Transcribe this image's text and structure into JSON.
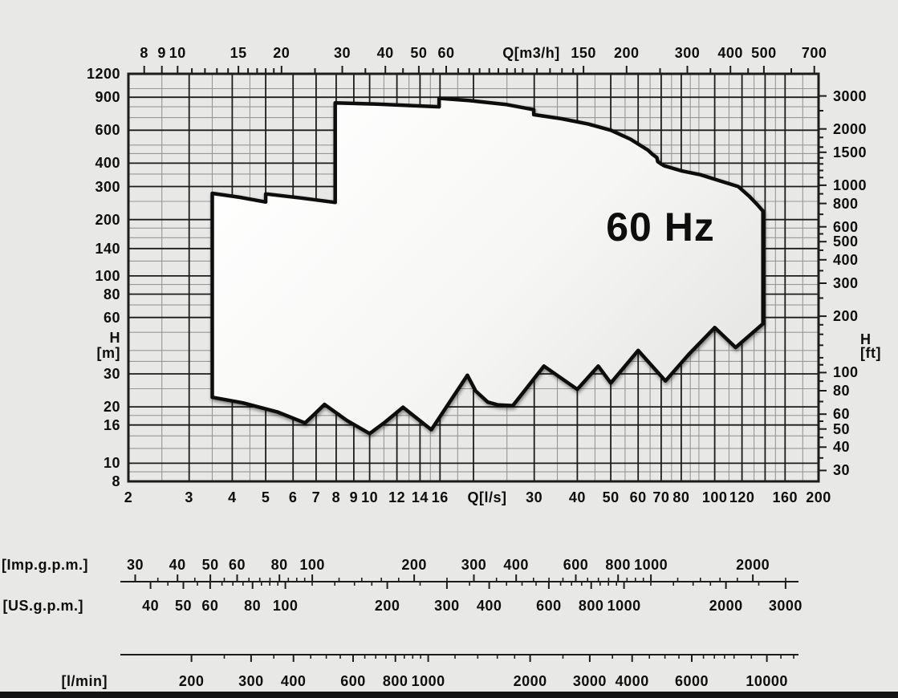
{
  "colors": {
    "background": "#e8e8e6",
    "grid_minor": "#979797",
    "grid_major": "#1c1c1c",
    "envelope_stroke": "#0f0f0f",
    "envelope_fill_light": "#ffffff",
    "envelope_fill_dark": "#e5e5e3",
    "text": "#0e0e0e"
  },
  "chart_data": {
    "type": "area",
    "description": "Pump operating range envelope, head H versus flow Q, log-log scales",
    "frequency_label": "60 Hz",
    "x_axis_bottom": {
      "unit": "Q[l/s]",
      "scale": "log",
      "min": 2,
      "max": 200,
      "labels": [
        2,
        3,
        4,
        5,
        6,
        7,
        8,
        9,
        10,
        12,
        14,
        16,
        30,
        40,
        50,
        60,
        70,
        80,
        100,
        120,
        160,
        200
      ],
      "major_gridlines": [
        3,
        4,
        5,
        6,
        7,
        8,
        9,
        10,
        12,
        14,
        16,
        20,
        30,
        40,
        50,
        60,
        70,
        80,
        100,
        120,
        140,
        160
      ],
      "minor_gridlines": [
        2.5,
        3.5,
        4.5,
        11,
        13,
        15,
        18,
        25,
        35,
        45,
        55,
        65,
        75,
        85,
        90,
        110,
        130,
        150,
        180
      ]
    },
    "x_axis_top": {
      "unit": "Q[m3/h]",
      "scale": "log",
      "min": 7.2,
      "max": 720,
      "labels": [
        8,
        9,
        10,
        15,
        20,
        30,
        40,
        50,
        60,
        150,
        200,
        300,
        400,
        500,
        700
      ],
      "ticks": [
        8,
        9,
        10,
        11,
        12,
        13,
        14,
        15,
        16,
        17,
        18,
        19,
        20,
        25,
        30,
        35,
        40,
        45,
        50,
        55,
        60,
        65,
        70,
        75,
        80,
        85,
        90,
        95,
        100,
        110,
        120,
        130,
        140,
        150,
        200,
        250,
        300,
        350,
        400,
        450,
        500,
        600,
        700
      ]
    },
    "y_axis_left": {
      "unit_lines": [
        "H",
        "[m]"
      ],
      "scale": "log",
      "min": 8,
      "max": 1200,
      "labels": [
        1200,
        900,
        600,
        400,
        300,
        200,
        140,
        100,
        80,
        60,
        30,
        20,
        16,
        10,
        8
      ],
      "major_gridlines": [
        10,
        16,
        20,
        30,
        60,
        80,
        100,
        140,
        200,
        300,
        400,
        600,
        900
      ],
      "minor_gridlines": [
        9,
        12,
        14,
        18,
        25,
        35,
        40,
        50,
        70,
        90,
        120,
        160,
        180,
        250,
        350,
        450,
        500,
        700,
        800,
        1000
      ]
    },
    "y_axis_right": {
      "unit_lines": [
        "H",
        "[ft]"
      ],
      "scale": "log",
      "labels": [
        3000,
        2000,
        1500,
        1000,
        800,
        600,
        500,
        400,
        300,
        200,
        100,
        80,
        60,
        50,
        40,
        30
      ],
      "ticks": [
        3000,
        2500,
        2000,
        1800,
        1600,
        1500,
        1400,
        1300,
        1200,
        1100,
        1000,
        900,
        800,
        700,
        600,
        550,
        500,
        450,
        400,
        350,
        300,
        250,
        200,
        180,
        160,
        140,
        120,
        110,
        100,
        90,
        80,
        70,
        60,
        55,
        50,
        45,
        40,
        35,
        30
      ]
    },
    "envelope_Q_ls_H_m": [
      [
        3.5,
        276
      ],
      [
        4.2,
        263
      ],
      [
        5,
        248
      ],
      [
        5,
        274
      ],
      [
        6.3,
        261
      ],
      [
        7.95,
        247
      ],
      [
        7.95,
        840
      ],
      [
        10.5,
        827
      ],
      [
        13,
        813
      ],
      [
        15.9,
        800
      ],
      [
        15.9,
        888
      ],
      [
        19.5,
        863
      ],
      [
        25,
        822
      ],
      [
        29.9,
        772
      ],
      [
        29.9,
        726
      ],
      [
        36,
        691
      ],
      [
        43,
        647
      ],
      [
        50,
        600
      ],
      [
        57,
        537
      ],
      [
        64,
        470
      ],
      [
        66,
        446
      ],
      [
        68,
        428
      ],
      [
        68.4,
        408
      ],
      [
        70,
        396
      ],
      [
        71.5,
        387
      ],
      [
        80,
        364
      ],
      [
        91,
        347
      ],
      [
        103,
        323
      ],
      [
        117,
        300
      ],
      [
        126,
        266
      ],
      [
        133,
        240
      ],
      [
        138,
        222
      ],
      [
        138,
        55.5
      ],
      [
        115,
        41.5
      ],
      [
        100,
        53
      ],
      [
        84,
        38
      ],
      [
        72,
        27.5
      ],
      [
        60,
        40
      ],
      [
        50,
        26.8
      ],
      [
        46,
        33
      ],
      [
        40,
        24.8
      ],
      [
        32,
        33
      ],
      [
        26,
        20.3
      ],
      [
        23.5,
        20.5
      ],
      [
        22,
        21.2
      ],
      [
        20.3,
        24.3
      ],
      [
        19.2,
        29.5
      ],
      [
        15.1,
        15.1
      ],
      [
        12.5,
        19.9
      ],
      [
        11.1,
        16.6
      ],
      [
        10,
        14.4
      ],
      [
        8.6,
        16.9
      ],
      [
        7.4,
        20.6
      ],
      [
        6.9,
        18.2
      ],
      [
        6.5,
        16.4
      ],
      [
        5.4,
        18.8
      ],
      [
        4.3,
        21
      ],
      [
        3.5,
        22.5
      ]
    ],
    "rulers": {
      "imp_gpm": {
        "label": "[Imp.g.p.m.]",
        "labels": [
          30,
          40,
          50,
          60,
          80,
          100,
          200,
          300,
          400,
          600,
          800,
          1000,
          2000
        ],
        "minor_ticks": [
          35,
          45,
          55,
          65,
          70,
          75,
          85,
          90,
          95,
          120,
          140,
          160,
          180,
          250,
          350,
          450,
          500,
          550,
          650,
          700,
          750,
          850,
          900,
          950,
          1200,
          1400,
          1600,
          1800,
          2500
        ]
      },
      "us_gpm": {
        "label": "[US.g.p.m.]",
        "labels": [
          40,
          50,
          60,
          80,
          100,
          200,
          300,
          400,
          600,
          800,
          1000,
          2000,
          3000
        ],
        "minor_ticks": [
          45,
          55,
          65,
          70,
          75,
          85,
          90,
          95,
          120,
          140,
          160,
          180,
          250,
          350,
          450,
          500,
          550,
          650,
          700,
          750,
          850,
          900,
          950,
          1200,
          1400,
          1600,
          1800,
          2500
        ]
      },
      "l_min": {
        "label": "[l/min]",
        "labels": [
          200,
          300,
          400,
          600,
          800,
          1000,
          2000,
          3000,
          4000,
          6000,
          10000
        ],
        "minor_ticks": [
          250,
          350,
          450,
          500,
          550,
          650,
          700,
          750,
          850,
          900,
          950,
          1200,
          1400,
          1600,
          1800,
          2500,
          3500,
          4500,
          5000,
          5500,
          6500,
          7000,
          7500,
          8000,
          9000,
          11000,
          12000
        ]
      }
    }
  }
}
